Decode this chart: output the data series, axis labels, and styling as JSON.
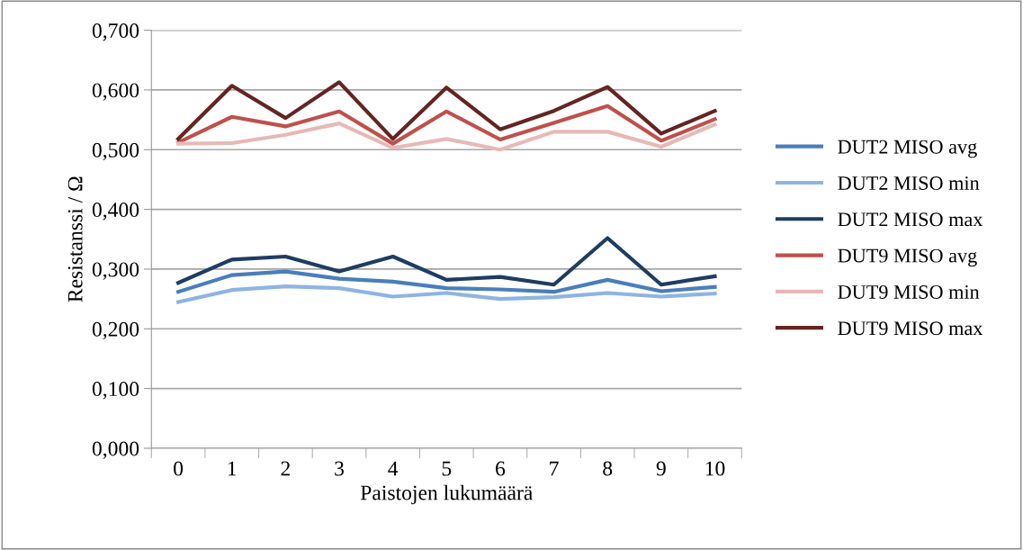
{
  "chart_data": {
    "type": "line",
    "xlabel": "Paistojen lukumäärä",
    "ylabel": "Resistanssi / Ω",
    "categories": [
      "0",
      "1",
      "2",
      "3",
      "4",
      "5",
      "6",
      "7",
      "8",
      "9",
      "10"
    ],
    "series": [
      {
        "name": "DUT2 MISO avg",
        "color": "#4a7ebb",
        "values": [
          0.262,
          0.29,
          0.296,
          0.284,
          0.279,
          0.268,
          0.266,
          0.262,
          0.282,
          0.263,
          0.27
        ]
      },
      {
        "name": "DUT2 MISO min",
        "color": "#8eb4e3",
        "values": [
          0.245,
          0.265,
          0.271,
          0.268,
          0.254,
          0.26,
          0.25,
          0.253,
          0.26,
          0.254,
          0.259
        ]
      },
      {
        "name": "DUT2 MISO max",
        "color": "#1f3c63",
        "values": [
          0.277,
          0.316,
          0.321,
          0.296,
          0.321,
          0.282,
          0.287,
          0.274,
          0.352,
          0.274,
          0.288
        ]
      },
      {
        "name": "DUT9 MISO avg",
        "color": "#c0504d",
        "values": [
          0.512,
          0.555,
          0.539,
          0.564,
          0.51,
          0.564,
          0.517,
          0.545,
          0.573,
          0.515,
          0.551
        ]
      },
      {
        "name": "DUT9 MISO min",
        "color": "#e6b9b8",
        "values": [
          0.51,
          0.511,
          0.525,
          0.544,
          0.503,
          0.518,
          0.5,
          0.53,
          0.53,
          0.505,
          0.542
        ]
      },
      {
        "name": "DUT9 MISO max",
        "color": "#632523",
        "values": [
          0.518,
          0.607,
          0.553,
          0.613,
          0.518,
          0.604,
          0.534,
          0.565,
          0.605,
          0.527,
          0.565
        ]
      }
    ],
    "ylim": [
      0,
      0.7
    ],
    "yticks": [
      {
        "value": 0,
        "label": "0,000"
      },
      {
        "value": 0.1,
        "label": "0,100"
      },
      {
        "value": 0.2,
        "label": "0,200"
      },
      {
        "value": 0.3,
        "label": "0,300"
      },
      {
        "value": 0.4,
        "label": "0,400"
      },
      {
        "value": 0.5,
        "label": "0,500"
      },
      {
        "value": 0.6,
        "label": "0,600"
      },
      {
        "value": 0.7,
        "label": "0,700"
      }
    ],
    "grid": "y",
    "legend": "right",
    "marker": "none",
    "line_style": "solid"
  }
}
